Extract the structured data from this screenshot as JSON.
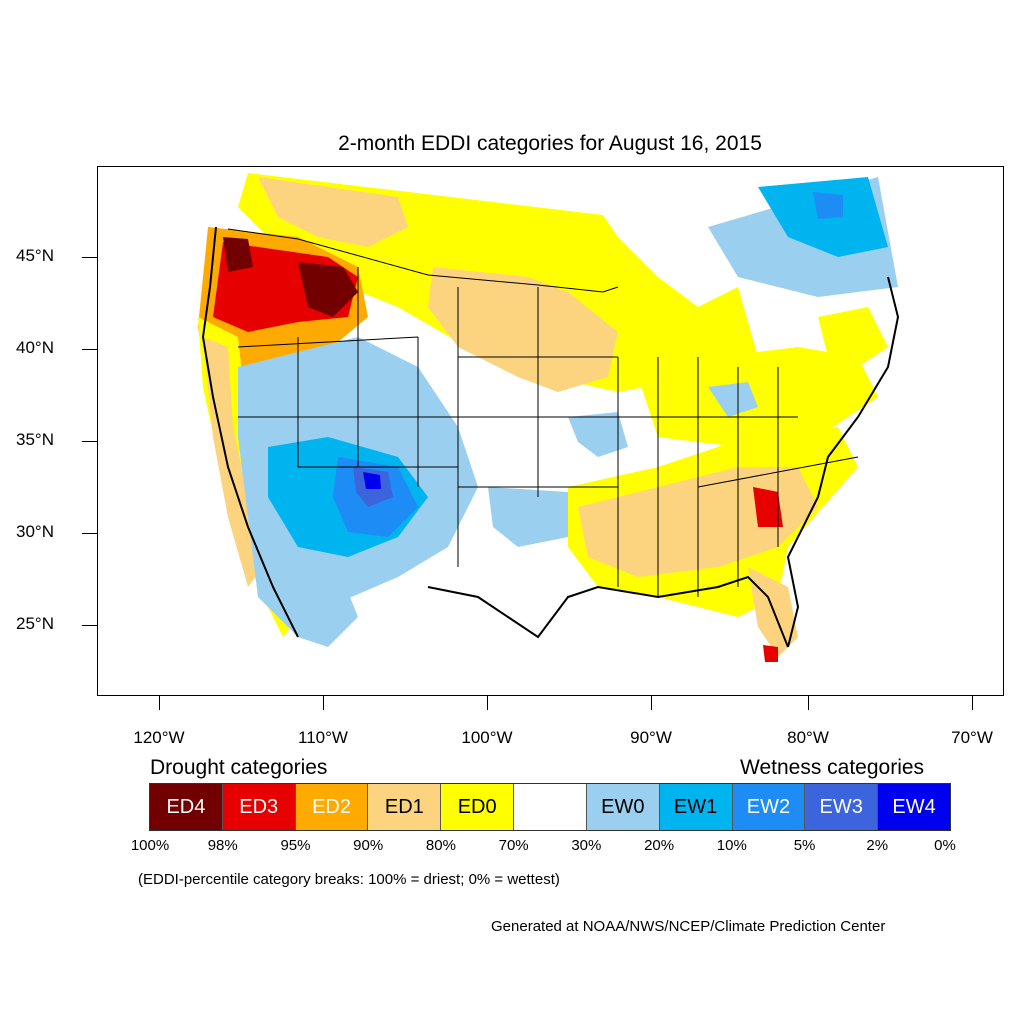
{
  "title": "2-month EDDI categories for August 16, 2015",
  "axes": {
    "lat_labels": [
      {
        "text": "45°N"
      },
      {
        "text": "40°N"
      },
      {
        "text": "35°N"
      },
      {
        "text": "30°N"
      },
      {
        "text": "25°N"
      }
    ],
    "lon_labels": [
      {
        "text": "120°W"
      },
      {
        "text": "110°W"
      },
      {
        "text": "100°W"
      },
      {
        "text": "90°W"
      },
      {
        "text": "80°W"
      },
      {
        "text": "70°W"
      }
    ]
  },
  "legend": {
    "drought_header": "Drought categories",
    "wetness_header": "Wetness categories",
    "categories": [
      {
        "label": "ED4",
        "color": "#730000",
        "text_color": "#ffffff"
      },
      {
        "label": "ED3",
        "color": "#e60000",
        "text_color": "#ffffff"
      },
      {
        "label": "ED2",
        "color": "#ffaa00",
        "text_color": "#ffffff"
      },
      {
        "label": "ED1",
        "color": "#fcd37f",
        "text_color": "#000000"
      },
      {
        "label": "ED0",
        "color": "#ffff00",
        "text_color": "#000000"
      },
      {
        "label": "",
        "color": "#ffffff",
        "text_color": "#000000"
      },
      {
        "label": "EW0",
        "color": "#9bcfef",
        "text_color": "#000000"
      },
      {
        "label": "EW1",
        "color": "#00b4f0",
        "text_color": "#000000"
      },
      {
        "label": "EW2",
        "color": "#1e8cf5",
        "text_color": "#ffffff"
      },
      {
        "label": "EW3",
        "color": "#3c64dc",
        "text_color": "#ffffff"
      },
      {
        "label": "EW4",
        "color": "#0000f0",
        "text_color": "#ffffff"
      }
    ],
    "breaks": [
      "100%",
      "98%",
      "95%",
      "90%",
      "80%",
      "70%",
      "30%",
      "20%",
      "10%",
      "5%",
      "2%",
      "0%"
    ],
    "note": "(EDDI-percentile category breaks: 100% = driest; 0% = wettest)"
  },
  "credit": "Generated at NOAA/NWS/NCEP/Climate Prediction Center"
}
